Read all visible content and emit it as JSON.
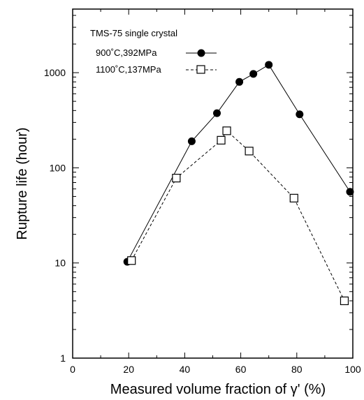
{
  "chart_data": {
    "type": "line",
    "title": "",
    "xlabel": "Measured volume fraction of γ' (%)",
    "ylabel": "Rupture life (hour)",
    "xlim": [
      0,
      100
    ],
    "ylim": [
      1,
      10000
    ],
    "yscale": "log",
    "grid": false,
    "legend_title": "TMS-75 single crystal",
    "legend_position": "top-left",
    "x_ticks": [
      "0",
      "20",
      "40",
      "60",
      "80",
      "100"
    ],
    "y_ticks": [
      "1",
      "10",
      "100",
      "1000"
    ],
    "series": [
      {
        "name": "900˚C,392MPa",
        "marker": "filled-circle",
        "line": "solid",
        "x": [
          19.5,
          42.5,
          51.5,
          59.5,
          64.5,
          70,
          81,
          99
        ],
        "y": [
          10.3,
          190,
          375,
          800,
          970,
          1210,
          365,
          56
        ]
      },
      {
        "name": "1100˚C,137MPa",
        "marker": "open-square",
        "line": "dashed",
        "x": [
          21,
          37,
          53,
          55,
          63,
          79,
          97
        ],
        "y": [
          10.6,
          78,
          195,
          245,
          150,
          48,
          4
        ]
      }
    ]
  }
}
